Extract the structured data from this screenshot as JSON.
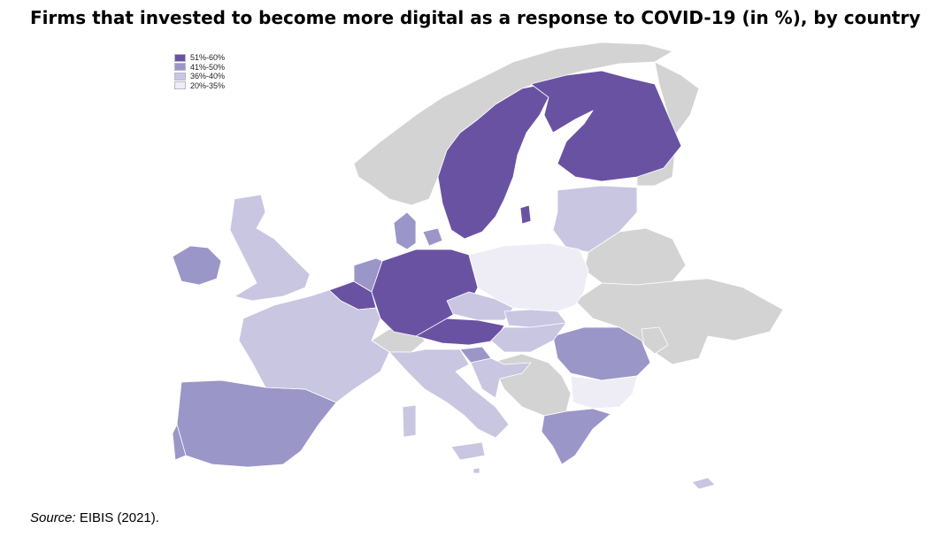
{
  "title": "Firms that invested to become more digital as a response to COVID-19 (in %), by country",
  "legend": [
    {
      "label": "51%-60%",
      "color": "#6a52a3"
    },
    {
      "label": "41%-50%",
      "color": "#9b96c8"
    },
    {
      "label": "36%-40%",
      "color": "#c8c6e1"
    },
    {
      "label": "20%-35%",
      "color": "#eeedf6"
    }
  ],
  "no_data_color": "#d3d3d3",
  "source": {
    "label": "Source:",
    "text": " EIBIS (2021)."
  }
}
